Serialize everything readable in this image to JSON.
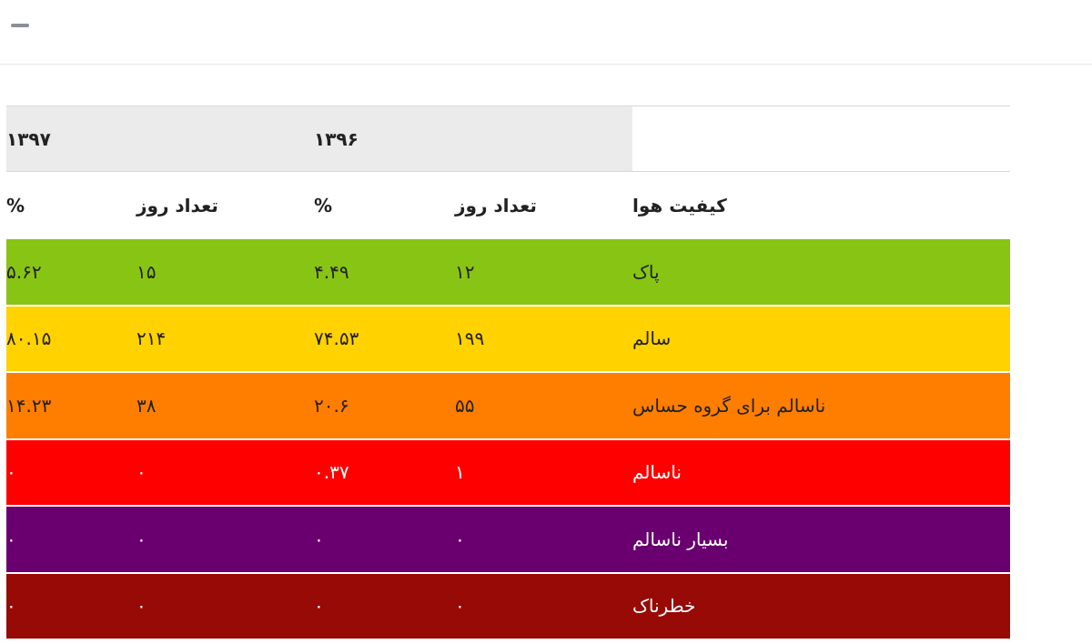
{
  "table": {
    "year_headers": [
      "۱۳۹۶",
      "۱۳۹۷"
    ],
    "column_headers": [
      "کیفیت هوا",
      "تعداد روز",
      "%",
      "تعداد روز",
      "%"
    ],
    "rows": [
      {
        "color": "#88c414",
        "text_color": "#222222",
        "cells": [
          "پاک",
          "۱۲",
          "۴.۴۹",
          "۱۵",
          "۵.۶۲"
        ]
      },
      {
        "color": "#ffd200",
        "text_color": "#222222",
        "cells": [
          "سالم",
          "۱۹۹",
          "۷۴.۵۳",
          "۲۱۴",
          "۸۰.۱۵"
        ]
      },
      {
        "color": "#ff7e00",
        "text_color": "#222222",
        "cells": [
          "ناسالم برای گروه حساس",
          "۵۵",
          "۲۰.۶",
          "۳۸",
          "۱۴.۲۳"
        ]
      },
      {
        "color": "#ff0000",
        "text_color": "#ffffff",
        "cells": [
          "ناسالم",
          "۱",
          "۰.۳۷",
          "۰",
          "۰"
        ]
      },
      {
        "color": "#6a0070",
        "text_color": "#ffffff",
        "cells": [
          "بسیار ناسالم",
          "۰",
          "۰",
          "۰",
          "۰"
        ]
      },
      {
        "color": "#970a05",
        "text_color": "#ffffff",
        "cells": [
          "خطرناک",
          "۰",
          "۰",
          "۰",
          "۰"
        ]
      }
    ]
  }
}
